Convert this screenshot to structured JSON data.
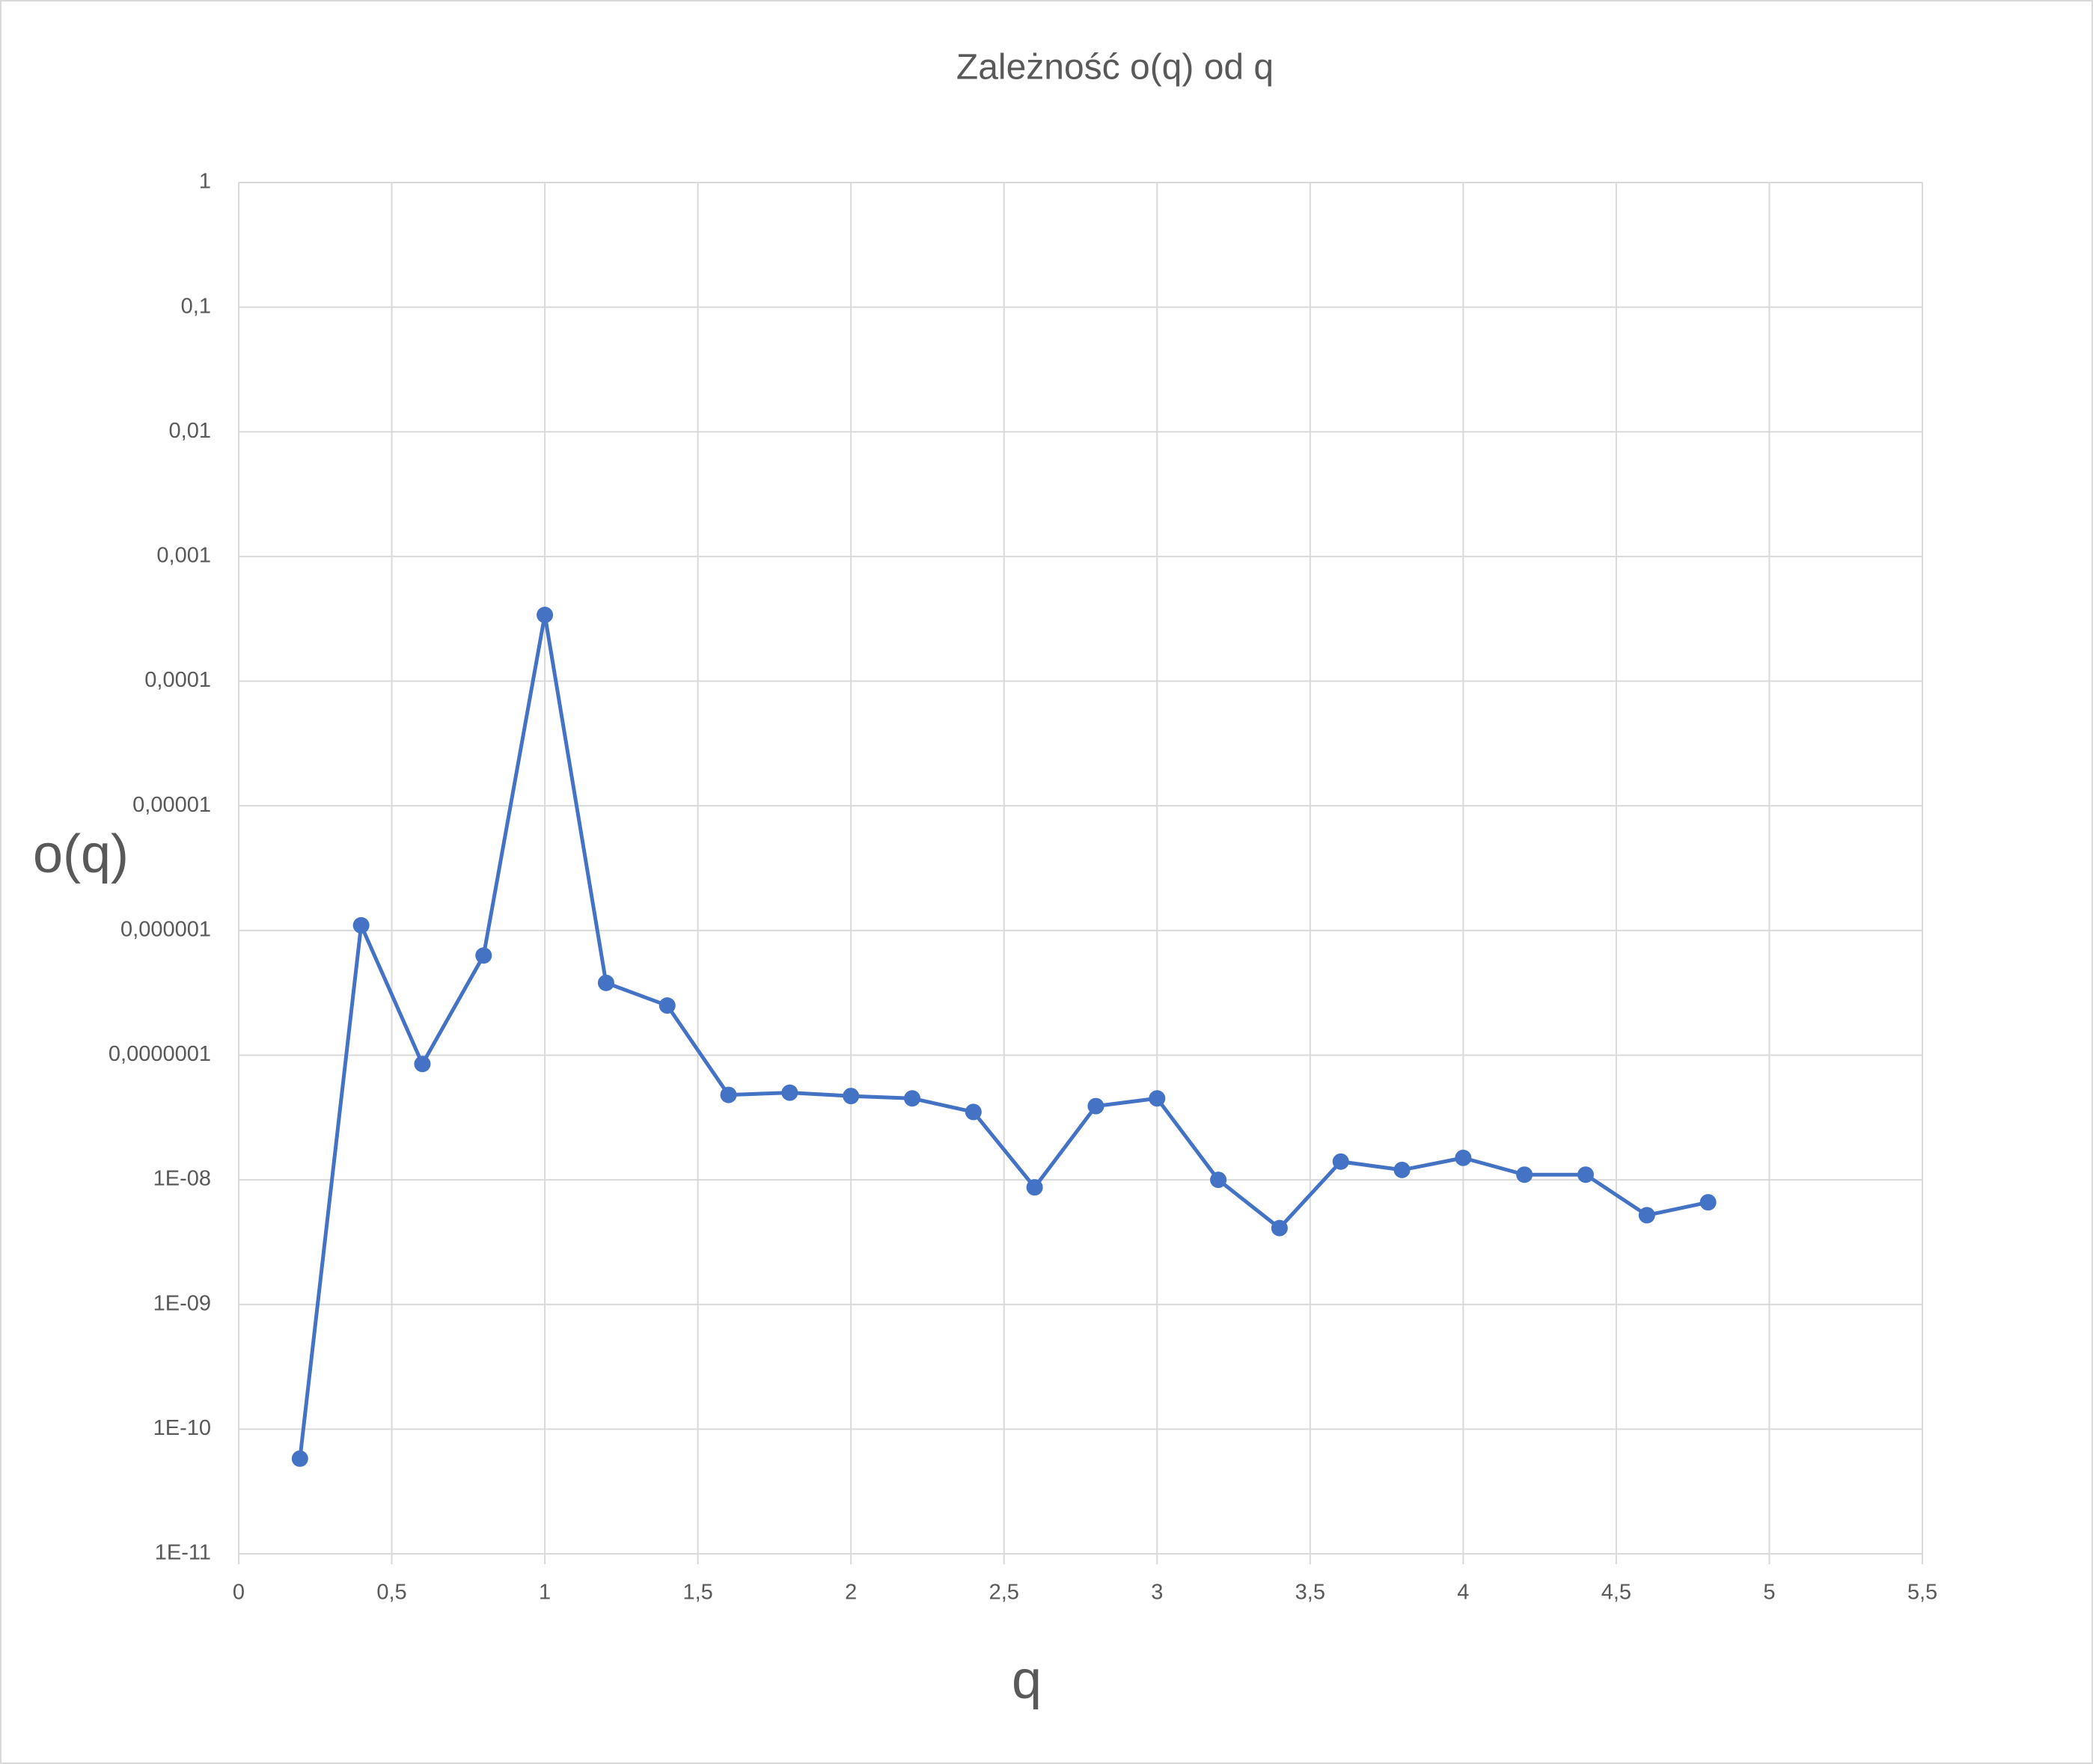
{
  "chart_data": {
    "type": "line",
    "title": "Zależność o(q) od q",
    "x_label": "q",
    "y_label": "o(q)",
    "x": [
      0.2,
      0.4,
      0.6,
      0.8,
      1.0,
      1.2,
      1.4,
      1.6,
      1.8,
      2.0,
      2.2,
      2.4,
      2.6,
      2.8,
      3.0,
      3.2,
      3.4,
      3.6,
      3.8,
      4.0,
      4.2,
      4.4,
      4.6,
      4.8
    ],
    "series": [
      {
        "color": "#4472c4",
        "values": [
          5.8e-11,
          1.1e-06,
          8.5e-08,
          6.3e-07,
          0.00034,
          3.8e-07,
          2.5e-07,
          4.8e-08,
          5e-08,
          4.7e-08,
          4.5e-08,
          3.5e-08,
          8.7e-09,
          3.9e-08,
          4.5e-08,
          1e-08,
          4.1e-09,
          1.4e-08,
          1.2e-08,
          1.5e-08,
          1.1e-08,
          1.1e-08,
          5.2e-09,
          6.6e-09
        ]
      }
    ],
    "xlim": [
      0,
      5.5
    ],
    "xticks": [
      0,
      {
        "value": 0.5,
        "label": "0,5"
      },
      1,
      {
        "value": 1.5,
        "label": "1,5"
      },
      2,
      {
        "value": 2.5,
        "label": "2,5"
      },
      3,
      {
        "value": 3.5,
        "label": "3,5"
      },
      4,
      {
        "value": 4.5,
        "label": "4,5"
      },
      5,
      {
        "value": 5.5,
        "label": "5,5"
      }
    ],
    "ylim": [
      1e-11,
      1
    ],
    "yscale": "log",
    "yticks": [
      {
        "value": 1e-11,
        "label": "1E-11"
      },
      {
        "value": 1e-10,
        "label": "1E-10"
      },
      {
        "value": 1e-09,
        "label": "1E-09"
      },
      {
        "value": 1e-08,
        "label": "1E-08"
      },
      {
        "value": 1e-07,
        "label": "0,0000001"
      },
      {
        "value": 1e-06,
        "label": "0,000001"
      },
      {
        "value": 1e-05,
        "label": "0,00001"
      },
      {
        "value": 0.0001,
        "label": "0,0001"
      },
      {
        "value": 0.001,
        "label": "0,001"
      },
      {
        "value": 0.01,
        "label": "0,01"
      },
      {
        "value": 0.1,
        "label": "0,1"
      },
      1
    ],
    "grid": true
  }
}
